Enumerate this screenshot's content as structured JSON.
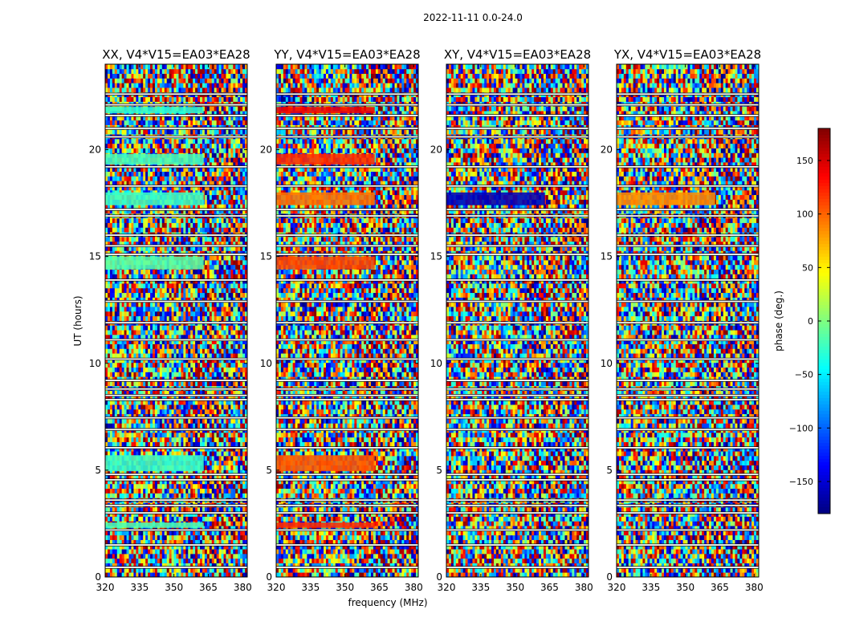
{
  "figure": {
    "suptitle": "2022-11-11 0.0-24.0",
    "xlabel": "frequency (MHz)",
    "ylabel": "UT (hours)",
    "colorbar_label": "phase (deg.)"
  },
  "chart_data": {
    "type": "heatmap",
    "title": "2022-11-11 0.0-24.0",
    "xlabel": "frequency (MHz)",
    "ylabel": "UT (hours)",
    "xlim": [
      320,
      382
    ],
    "ylim": [
      0,
      24
    ],
    "x_ticks": [
      320,
      335,
      350,
      365,
      380
    ],
    "y_ticks": [
      0,
      5,
      10,
      15,
      20
    ],
    "colorbar": {
      "label": "phase (deg.)",
      "range": [
        -180,
        180
      ],
      "ticks": [
        150,
        100,
        50,
        0,
        -50,
        -100,
        -150
      ],
      "tick_labels": [
        "150",
        "100",
        "50",
        "0",
        "−50",
        "−100",
        "−150"
      ],
      "colormap": "jet"
    },
    "panels": [
      {
        "title": "XX, V4*V15=EA03*EA28",
        "mode": "xx"
      },
      {
        "title": "YY, V4*V15=EA03*EA28",
        "mode": "yy"
      },
      {
        "title": "XY, V4*V15=EA03*EA28",
        "mode": "xy"
      },
      {
        "title": "YX, V4*V15=EA03*EA28",
        "mode": "yx"
      }
    ],
    "flag_gaps_hours": [
      0.45,
      1.5,
      2.2,
      3.0,
      3.35,
      3.6,
      4.55,
      4.8,
      6.05,
      6.9,
      7.45,
      8.3,
      8.5,
      8.8,
      9.2,
      10.2,
      11.1,
      11.9,
      12.9,
      13.9,
      15.1,
      15.5,
      16.0,
      16.9,
      17.2,
      18.3,
      19.2,
      20.6,
      21.0,
      21.6,
      22.1,
      22.6
    ],
    "coherent_bands": [
      {
        "ut": [
          2.3,
          2.55
        ],
        "phase_deg": {
          "xx": -20,
          "yy": 120
        }
      },
      {
        "ut": [
          4.95,
          5.7
        ],
        "phase_deg": {
          "xx": -25,
          "yy": 105
        }
      },
      {
        "ut": [
          14.4,
          15.0
        ],
        "phase_deg": {
          "xx": -15,
          "yy": 110
        }
      },
      {
        "ut": [
          17.4,
          18.0
        ],
        "phase_deg": {
          "xx": -25,
          "yy": 95,
          "xy": -160,
          "yx": 85
        }
      },
      {
        "ut": [
          19.3,
          19.8
        ],
        "phase_deg": {
          "xx": -20,
          "yy": 120
        }
      },
      {
        "ut": [
          21.7,
          22.0
        ],
        "phase_deg": {
          "xx": -30,
          "yy": 140
        }
      }
    ]
  }
}
